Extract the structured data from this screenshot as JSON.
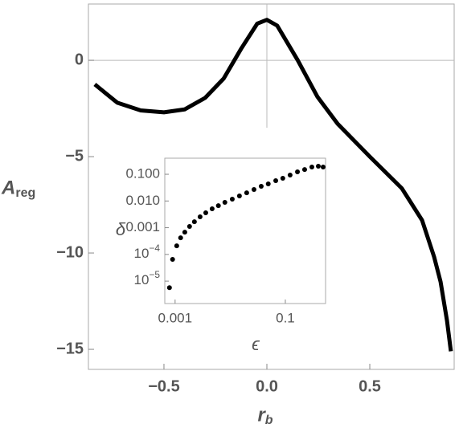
{
  "chart_data": [
    {
      "type": "line",
      "xlabel": "r",
      "xlabel_sub": "b",
      "ylabel": "A",
      "ylabel_sub": "reg",
      "color": "#000000",
      "x": [
        -0.836,
        -0.727,
        -0.613,
        -0.5,
        -0.4,
        -0.3,
        -0.21,
        -0.125,
        -0.047,
        0,
        0.05,
        0.15,
        0.246,
        0.344,
        0.5,
        0.656,
        0.754,
        0.8125,
        0.844,
        0.875,
        0.894
      ],
      "values": [
        -1.25,
        -2.2,
        -2.6,
        -2.7,
        -2.55,
        -1.95,
        -0.95,
        0.6,
        1.9,
        2.1,
        1.8,
        0,
        -1.9,
        -3.3,
        -5,
        -6.65,
        -8.3,
        -10.2,
        -11.5,
        -13.5,
        -15.1
      ],
      "xlim": [
        -0.867,
        0.91
      ],
      "ylim": [
        -16.04,
        2.92
      ],
      "xticks": [
        {
          "value": -0.5,
          "label": "−0.5"
        },
        {
          "value": 0,
          "label": "0.0"
        },
        0.5
      ],
      "yticks": [
        {
          "value": -15,
          "label": "−15"
        },
        {
          "value": -10,
          "label": "−10"
        },
        {
          "value": -5,
          "label": "−5"
        },
        0
      ]
    },
    {
      "type": "scatter",
      "xlabel": "ϵ",
      "ylabel": "δ",
      "color": "#000000",
      "xscale": "log",
      "yscale": "log",
      "x": [
        0.00079,
        0.0009,
        0.00107,
        0.00126,
        0.0015,
        0.00183,
        0.00224,
        0.00284,
        0.0036,
        0.0047,
        0.0061,
        0.008,
        0.0109,
        0.0147,
        0.0199,
        0.027,
        0.0365,
        0.049,
        0.067,
        0.09,
        0.122,
        0.166,
        0.224,
        0.303,
        0.397,
        0.485
      ],
      "values": [
        5.7e-06,
        6.5e-05,
        0.00021,
        0.00042,
        0.00068,
        0.00111,
        0.00168,
        0.00255,
        0.0036,
        0.0051,
        0.0067,
        0.0089,
        0.0117,
        0.0154,
        0.0203,
        0.0268,
        0.0354,
        0.0436,
        0.0574,
        0.0708,
        0.0933,
        0.123,
        0.151,
        0.187,
        0.2,
        0.187
      ],
      "xlim": [
        0.00065,
        0.537
      ],
      "ylim": [
        1.45e-06,
        0.4
      ],
      "xticks": [
        0.001,
        0.1
      ],
      "yticks": [
        {
          "value": 0.1,
          "label": "0.100"
        },
        {
          "value": 0.01,
          "label": "0.010"
        },
        0.001,
        {
          "value": 0.0001,
          "label": "10",
          "exponent": "−4"
        },
        {
          "value": 1e-05,
          "label": "10",
          "exponent": "−5"
        }
      ]
    }
  ]
}
